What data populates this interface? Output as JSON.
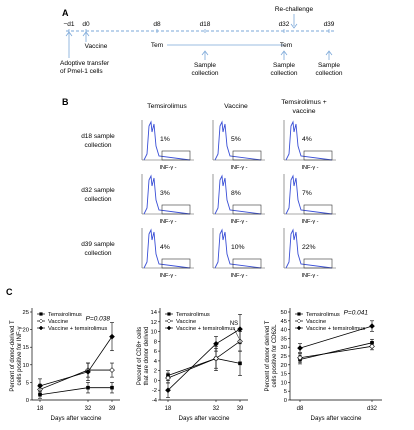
{
  "panel_letters": {
    "a": "A",
    "b": "B",
    "c": "C"
  },
  "timeline": {
    "rechallenge_label": "Re-challenge",
    "tick_labels": [
      "−d1",
      "d0",
      "d8",
      "d18",
      "d32",
      "d39"
    ],
    "vaccine_label": "Vaccine",
    "tem_labels": [
      "Tem",
      "Tem"
    ],
    "adoptive_line1": "Adoptive transfer",
    "adoptive_line2": "of Pmel-1 cells",
    "sample_line1": "Sample",
    "sample_line2": "collection"
  },
  "flow": {
    "columns": [
      "Temsirolimus",
      "Vaccine",
      "Temsirolimus +\nvaccine"
    ],
    "rows": [
      {
        "label_line1": "d18 sample",
        "label_line2": "collection",
        "values": [
          "1%",
          "5%",
          "4%"
        ]
      },
      {
        "label_line1": "d32 sample",
        "label_line2": "collection",
        "values": [
          "3%",
          "8%",
          "7%"
        ]
      },
      {
        "label_line1": "d39 sample",
        "label_line2": "collection",
        "values": [
          "4%",
          "10%",
          "22%"
        ]
      }
    ],
    "xlabel": "INF-γ -",
    "line_color": "#3a4fd6"
  },
  "chart_data": [
    {
      "type": "line",
      "ylabel": "Percent of donor-derived T cells positive for INF-γ",
      "xlabel": "Days after vaccine",
      "x": [
        18,
        32,
        39
      ],
      "ylim": [
        0,
        25
      ],
      "yticks": [
        0,
        5,
        10,
        15,
        20,
        25
      ],
      "legend_placement": "top-left",
      "annotation": "P=0.038",
      "series": [
        {
          "name": "Temsirolimus",
          "marker": "filled-square",
          "values": [
            1.5,
            3.5,
            3.5
          ],
          "err": [
            1.0,
            1.5,
            1.5
          ]
        },
        {
          "name": "Vaccine",
          "marker": "open-diamond",
          "values": [
            3.0,
            8.5,
            8.5
          ],
          "err": [
            1.5,
            2.0,
            2.0
          ]
        },
        {
          "name": "Vaccine + temsirolimus",
          "marker": "filled-diamond",
          "values": [
            4.0,
            8.0,
            18.0
          ],
          "err": [
            2.0,
            2.5,
            4.0
          ]
        }
      ]
    },
    {
      "type": "line",
      "ylabel": "Percent of CD8+ cells that are donor derived",
      "xlabel": "Days after vaccine",
      "x": [
        18,
        32,
        39
      ],
      "ylim": [
        -4,
        14
      ],
      "yticks": [
        -4,
        -2,
        0,
        2,
        4,
        6,
        8,
        10,
        12,
        14
      ],
      "legend_placement": "top-left",
      "annotation": "NS",
      "series": [
        {
          "name": "Temsirolimus",
          "marker": "filled-square",
          "values": [
            1.0,
            4.5,
            3.5
          ],
          "err": [
            1.0,
            2.5,
            2.5
          ]
        },
        {
          "name": "Vaccine",
          "marker": "open-diamond",
          "values": [
            0.5,
            4.5,
            8.0
          ],
          "err": [
            1.0,
            2.0,
            2.0
          ]
        },
        {
          "name": "Vaccine + temsirolimus",
          "marker": "filled-diamond",
          "values": [
            -2.0,
            7.5,
            10.5
          ],
          "err": [
            1.5,
            1.5,
            3.0
          ]
        }
      ]
    },
    {
      "type": "line",
      "ylabel": "Percent of donor derived T cells positive for CD62L",
      "xlabel": "Days after vaccine",
      "x": [
        "d8",
        "d32"
      ],
      "ylim": [
        0,
        50
      ],
      "yticks": [
        0,
        5,
        10,
        15,
        20,
        25,
        30,
        35,
        40,
        45,
        50
      ],
      "legend_placement": "top-left",
      "annotation": "P=0.041",
      "series": [
        {
          "name": "Temsirolimus",
          "marker": "filled-square",
          "values": [
            23.0,
            32.5
          ],
          "err": [
            2.5,
            2.0
          ]
        },
        {
          "name": "Vaccine",
          "marker": "open-diamond",
          "values": [
            24.0,
            30.5
          ],
          "err": [
            2.5,
            2.0
          ]
        },
        {
          "name": "Vaccine + temsirolimus",
          "marker": "filled-diamond",
          "values": [
            29.5,
            42.0
          ],
          "err": [
            2.5,
            3.0
          ]
        }
      ]
    }
  ]
}
